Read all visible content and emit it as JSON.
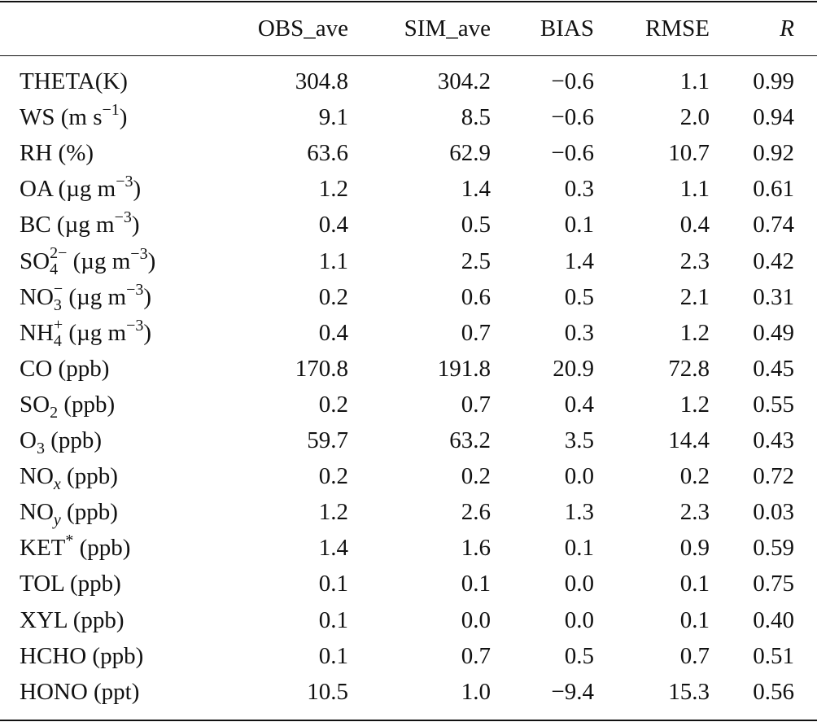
{
  "header": {
    "label": "",
    "columns": [
      "OBS_ave",
      "SIM_ave",
      "BIAS",
      "RMSE",
      "R"
    ]
  },
  "rows": [
    {
      "label": [
        {
          "t": "THETA(K)"
        }
      ],
      "values": [
        "304.8",
        "304.2",
        "−0.6",
        "1.1",
        "0.99"
      ]
    },
    {
      "label": [
        {
          "t": "WS (m s"
        },
        {
          "sup": "−1"
        },
        {
          "t": ")"
        }
      ],
      "values": [
        "9.1",
        "8.5",
        "−0.6",
        "2.0",
        "0.94"
      ]
    },
    {
      "label": [
        {
          "t": "RH (%)"
        }
      ],
      "values": [
        "63.6",
        "62.9",
        "−0.6",
        "10.7",
        "0.92"
      ]
    },
    {
      "label": [
        {
          "t": "OA (µg m"
        },
        {
          "sup": "−3"
        },
        {
          "t": ")"
        }
      ],
      "values": [
        "1.2",
        "1.4",
        "0.3",
        "1.1",
        "0.61"
      ]
    },
    {
      "label": [
        {
          "t": "BC (µg m"
        },
        {
          "sup": "−3"
        },
        {
          "t": ")"
        }
      ],
      "values": [
        "0.4",
        "0.5",
        "0.1",
        "0.4",
        "0.74"
      ]
    },
    {
      "label": [
        {
          "t": "SO"
        },
        {
          "sup": "2−",
          "sub": "4"
        },
        {
          "t": " (µg m"
        },
        {
          "sup": "−3"
        },
        {
          "t": ")"
        }
      ],
      "values": [
        "1.1",
        "2.5",
        "1.4",
        "2.3",
        "0.42"
      ]
    },
    {
      "label": [
        {
          "t": "NO"
        },
        {
          "sup": "−",
          "sub": "3"
        },
        {
          "t": " (µg m"
        },
        {
          "sup": "−3"
        },
        {
          "t": ")"
        }
      ],
      "values": [
        "0.2",
        "0.6",
        "0.5",
        "2.1",
        "0.31"
      ]
    },
    {
      "label": [
        {
          "t": "NH"
        },
        {
          "sup": "+",
          "sub": "4"
        },
        {
          "t": " (µg m"
        },
        {
          "sup": "−3"
        },
        {
          "t": ")"
        }
      ],
      "values": [
        "0.4",
        "0.7",
        "0.3",
        "1.2",
        "0.49"
      ]
    },
    {
      "label": [
        {
          "t": "CO (ppb)"
        }
      ],
      "values": [
        "170.8",
        "191.8",
        "20.9",
        "72.8",
        "0.45"
      ]
    },
    {
      "label": [
        {
          "t": "SO"
        },
        {
          "sub": "2"
        },
        {
          "t": " (ppb)"
        }
      ],
      "values": [
        "0.2",
        "0.7",
        "0.4",
        "1.2",
        "0.55"
      ]
    },
    {
      "label": [
        {
          "t": "O"
        },
        {
          "sub": "3"
        },
        {
          "t": " (ppb)"
        }
      ],
      "values": [
        "59.7",
        "63.2",
        "3.5",
        "14.4",
        "0.43"
      ]
    },
    {
      "label": [
        {
          "t": "NO"
        },
        {
          "sub": "x",
          "italic": true
        },
        {
          "t": " (ppb)"
        }
      ],
      "values": [
        "0.2",
        "0.2",
        "0.0",
        "0.2",
        "0.72"
      ]
    },
    {
      "label": [
        {
          "t": "NO"
        },
        {
          "sub": "y",
          "italic": true
        },
        {
          "t": " (ppb)"
        }
      ],
      "values": [
        "1.2",
        "2.6",
        "1.3",
        "2.3",
        "0.03"
      ]
    },
    {
      "label": [
        {
          "t": "KET"
        },
        {
          "sup": "*"
        },
        {
          "t": " (ppb)"
        }
      ],
      "values": [
        "1.4",
        "1.6",
        "0.1",
        "0.9",
        "0.59"
      ]
    },
    {
      "label": [
        {
          "t": "TOL (ppb)"
        }
      ],
      "values": [
        "0.1",
        "0.1",
        "0.0",
        "0.1",
        "0.75"
      ]
    },
    {
      "label": [
        {
          "t": "XYL (ppb)"
        }
      ],
      "values": [
        "0.1",
        "0.0",
        "0.0",
        "0.1",
        "0.40"
      ]
    },
    {
      "label": [
        {
          "t": "HCHO (ppb)"
        }
      ],
      "values": [
        "0.1",
        "0.7",
        "0.5",
        "0.7",
        "0.51"
      ]
    },
    {
      "label": [
        {
          "t": "HONO (ppt)"
        }
      ],
      "values": [
        "10.5",
        "1.0",
        "−9.4",
        "15.3",
        "0.56"
      ]
    }
  ]
}
